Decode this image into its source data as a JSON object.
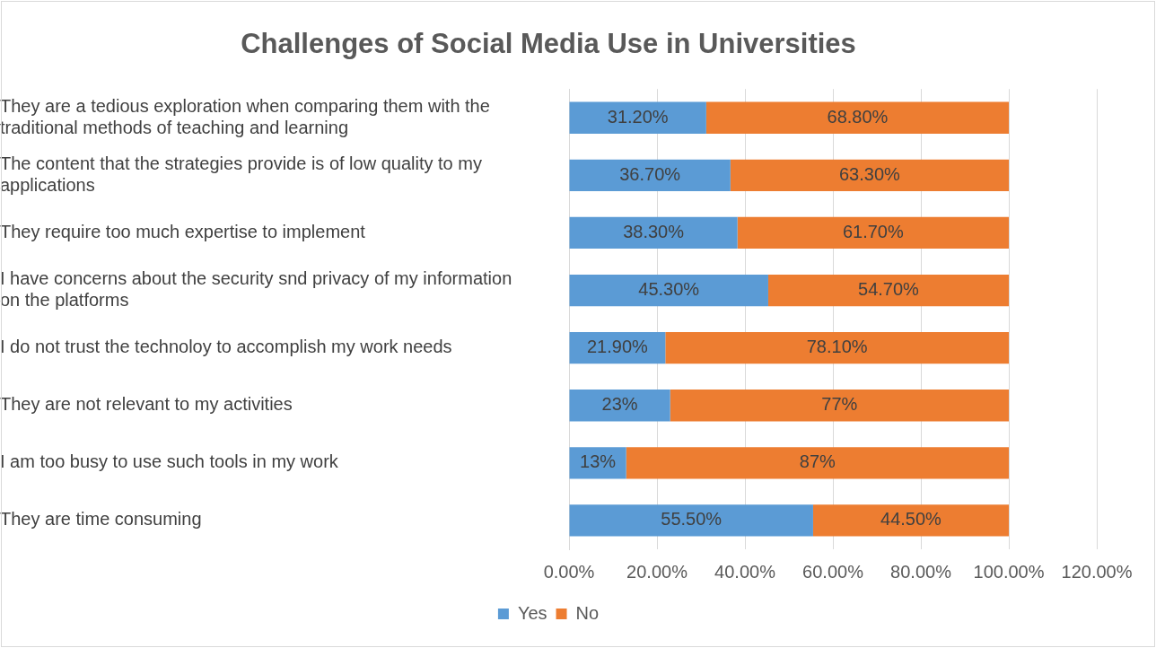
{
  "chart_data": {
    "type": "bar",
    "orientation": "horizontal",
    "stacked": true,
    "title": "Challenges of Social Media Use in Universities",
    "categories": [
      "They are a tedious exploration when comparing them with the traditional methods of teaching and learning",
      "The content that the strategies provide is of low quality to my applications",
      "They require too much expertise to implement",
      "I have concerns about the security snd privacy of my information on the platforms",
      "I do not trust the technoloy to accomplish my work needs",
      "They are not relevant to my activities",
      "I am too busy to use such tools in my work",
      "They are time consuming"
    ],
    "series": [
      {
        "name": "Yes",
        "color": "#5b9bd5",
        "values": [
          31.2,
          36.7,
          38.3,
          45.3,
          21.9,
          23,
          13,
          55.5
        ],
        "value_labels": [
          "31.20%",
          "36.70%",
          "38.30%",
          "45.30%",
          "21.90%",
          "23%",
          "13%",
          "55.50%"
        ]
      },
      {
        "name": "No",
        "color": "#ed7d31",
        "values": [
          68.8,
          63.3,
          61.7,
          54.7,
          78.1,
          77,
          87,
          44.5
        ],
        "value_labels": [
          "68.80%",
          "63.30%",
          "61.70%",
          "54.70%",
          "78.10%",
          "77%",
          "87%",
          "44.50%"
        ]
      }
    ],
    "xlim": [
      0,
      120
    ],
    "xticks": [
      {
        "value": 0,
        "label": "0.00%"
      },
      {
        "value": 20,
        "label": "20.00%"
      },
      {
        "value": 40,
        "label": "40.00%"
      },
      {
        "value": 60,
        "label": "60.00%"
      },
      {
        "value": 80,
        "label": "80.00%"
      },
      {
        "value": 100,
        "label": "100.00%"
      },
      {
        "value": 120,
        "label": "120.00%"
      }
    ],
    "grid": "x",
    "legend": "bottom"
  }
}
